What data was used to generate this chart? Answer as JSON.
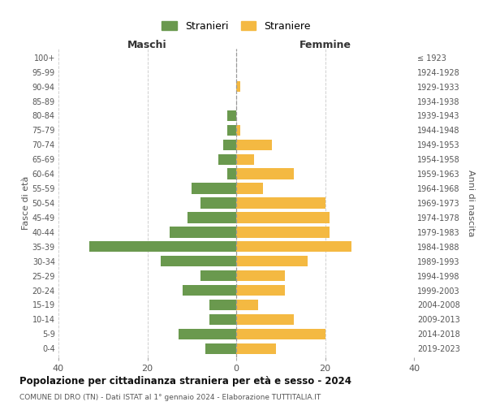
{
  "age_groups": [
    "0-4",
    "5-9",
    "10-14",
    "15-19",
    "20-24",
    "25-29",
    "30-34",
    "35-39",
    "40-44",
    "45-49",
    "50-54",
    "55-59",
    "60-64",
    "65-69",
    "70-74",
    "75-79",
    "80-84",
    "85-89",
    "90-94",
    "95-99",
    "100+"
  ],
  "birth_years": [
    "2019-2023",
    "2014-2018",
    "2009-2013",
    "2004-2008",
    "1999-2003",
    "1994-1998",
    "1989-1993",
    "1984-1988",
    "1979-1983",
    "1974-1978",
    "1969-1973",
    "1964-1968",
    "1959-1963",
    "1954-1958",
    "1949-1953",
    "1944-1948",
    "1939-1943",
    "1934-1938",
    "1929-1933",
    "1924-1928",
    "≤ 1923"
  ],
  "maschi": [
    7,
    13,
    6,
    6,
    12,
    8,
    17,
    33,
    15,
    11,
    8,
    10,
    2,
    4,
    3,
    2,
    2,
    0,
    0,
    0,
    0
  ],
  "femmine": [
    9,
    20,
    13,
    5,
    11,
    11,
    16,
    26,
    21,
    21,
    20,
    6,
    13,
    4,
    8,
    1,
    0,
    0,
    1,
    0,
    0
  ],
  "male_color": "#6a994e",
  "female_color": "#f4b942",
  "title": "Popolazione per cittadinanza straniera per età e sesso - 2024",
  "subtitle": "COMUNE DI DRO (TN) - Dati ISTAT al 1° gennaio 2024 - Elaborazione TUTTITALIA.IT",
  "xlabel_left": "Maschi",
  "xlabel_right": "Femmine",
  "ylabel_left": "Fasce di età",
  "ylabel_right": "Anni di nascita",
  "legend_male": "Stranieri",
  "legend_female": "Straniere",
  "xlim": 40,
  "background_color": "#ffffff",
  "grid_color": "#d0d0d0"
}
